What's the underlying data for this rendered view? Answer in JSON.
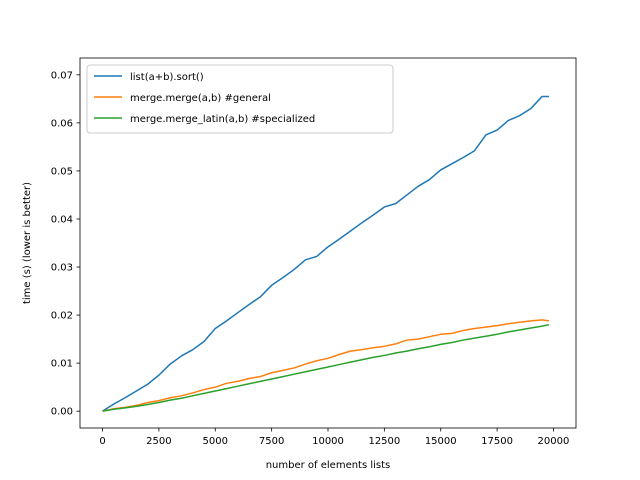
{
  "chart_data": {
    "type": "line",
    "title": "",
    "xlabel": "number of elements lists",
    "ylabel": "time (s) (lower is better)",
    "xlim": [
      -1000,
      21000
    ],
    "ylim": [
      -0.0035,
      0.0735
    ],
    "xticks": [
      0,
      2500,
      5000,
      7500,
      10000,
      12500,
      15000,
      17500,
      20000
    ],
    "xtick_labels": [
      "0",
      "2500",
      "5000",
      "7500",
      "10000",
      "12500",
      "15000",
      "17500",
      "20000"
    ],
    "yticks": [
      0.0,
      0.01,
      0.02,
      0.03,
      0.04,
      0.05,
      0.06,
      0.07
    ],
    "ytick_labels": [
      "0.00",
      "0.01",
      "0.02",
      "0.03",
      "0.04",
      "0.05",
      "0.06",
      "0.07"
    ],
    "grid": false,
    "legend_position": "top-left",
    "series": [
      {
        "name": "list(a+b).sort()",
        "color": "#1f77b4",
        "x": [
          0,
          500,
          1000,
          1500,
          2000,
          2500,
          3000,
          3500,
          4000,
          4500,
          5000,
          5500,
          6000,
          6500,
          7000,
          7500,
          8000,
          8500,
          9000,
          9500,
          10000,
          10500,
          11000,
          11500,
          12000,
          12500,
          13000,
          13500,
          14000,
          14500,
          15000,
          15500,
          16000,
          16500,
          17000,
          17500,
          18000,
          18500,
          19000,
          19500,
          19800
        ],
        "y": [
          0.0,
          0.0015,
          0.0028,
          0.0042,
          0.0056,
          0.0075,
          0.0098,
          0.0115,
          0.0128,
          0.0145,
          0.0172,
          0.0188,
          0.0205,
          0.0222,
          0.0238,
          0.0262,
          0.0278,
          0.0295,
          0.0315,
          0.0322,
          0.0342,
          0.0358,
          0.0375,
          0.0392,
          0.0408,
          0.0425,
          0.0432,
          0.045,
          0.0468,
          0.0482,
          0.0502,
          0.0515,
          0.0528,
          0.0542,
          0.0575,
          0.0585,
          0.0605,
          0.0615,
          0.063,
          0.0655,
          0.0655
        ]
      },
      {
        "name": "merge.merge(a,b) #general",
        "color": "#ff7f0e",
        "x": [
          0,
          500,
          1000,
          1500,
          2000,
          2500,
          3000,
          3500,
          4000,
          4500,
          5000,
          5500,
          6000,
          6500,
          7000,
          7500,
          8000,
          8500,
          9000,
          9500,
          10000,
          10500,
          11000,
          11500,
          12000,
          12500,
          13000,
          13500,
          14000,
          14500,
          15000,
          15500,
          16000,
          16500,
          17000,
          17500,
          18000,
          18500,
          19000,
          19500,
          19800
        ],
        "y": [
          0.0,
          0.0005,
          0.0008,
          0.0012,
          0.0018,
          0.0022,
          0.0028,
          0.0032,
          0.0038,
          0.0045,
          0.005,
          0.0058,
          0.0062,
          0.0068,
          0.0072,
          0.008,
          0.0085,
          0.009,
          0.0098,
          0.0105,
          0.011,
          0.0118,
          0.0125,
          0.0128,
          0.0132,
          0.0135,
          0.014,
          0.0148,
          0.015,
          0.0155,
          0.016,
          0.0162,
          0.0168,
          0.0172,
          0.0175,
          0.0178,
          0.0182,
          0.0185,
          0.0188,
          0.019,
          0.0188
        ]
      },
      {
        "name": "merge.merge_latin(a,b) #specialized",
        "color": "#2ca02c",
        "x": [
          0,
          500,
          1000,
          1500,
          2000,
          2500,
          3000,
          3500,
          4000,
          4500,
          5000,
          5500,
          6000,
          6500,
          7000,
          7500,
          8000,
          8500,
          9000,
          9500,
          10000,
          10500,
          11000,
          11500,
          12000,
          12500,
          13000,
          13500,
          14000,
          14500,
          15000,
          15500,
          16000,
          16500,
          17000,
          17500,
          18000,
          18500,
          19000,
          19500,
          19800
        ],
        "y": [
          0.0,
          0.0004,
          0.0007,
          0.001,
          0.0014,
          0.0018,
          0.0023,
          0.0027,
          0.0032,
          0.0037,
          0.0042,
          0.0047,
          0.0052,
          0.0057,
          0.0062,
          0.0067,
          0.0072,
          0.0077,
          0.0082,
          0.0087,
          0.0092,
          0.0097,
          0.0102,
          0.0107,
          0.0112,
          0.0116,
          0.0121,
          0.0125,
          0.013,
          0.0134,
          0.0139,
          0.0143,
          0.0148,
          0.0152,
          0.0156,
          0.016,
          0.0165,
          0.0169,
          0.0173,
          0.0177,
          0.018
        ]
      }
    ]
  }
}
